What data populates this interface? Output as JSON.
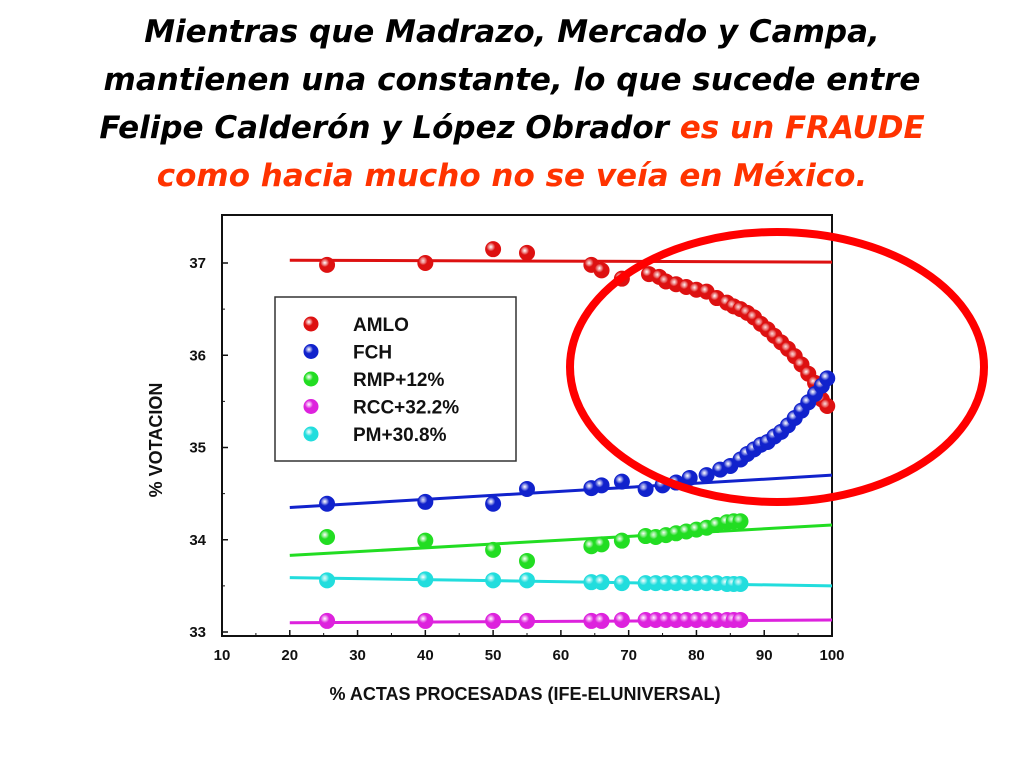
{
  "headline": {
    "line1": "Mientras que Madrazo, Mercado y Campa,",
    "line2": "mantienen una constante, lo que sucede entre",
    "line3_black": "Felipe Calderón y López Obrador",
    "line3_red": "es un FRAUDE",
    "line4_red": "como hacia mucho no se veía en México."
  },
  "colors": {
    "highlight_text": "#ff3300",
    "highlight_ellipse": "#ff0000"
  },
  "chart_data": {
    "type": "scatter",
    "xlabel": "% ACTAS PROCESADAS (IFE-ELUNIVERSAL)",
    "ylabel": "% VOTACION",
    "xlim": [
      10,
      100
    ],
    "ylim": [
      33,
      37.5
    ],
    "xticks": [
      "10",
      "20",
      "30",
      "40",
      "50",
      "60",
      "70",
      "80",
      "90",
      "100"
    ],
    "yticks": [
      "33",
      "34",
      "35",
      "36",
      "37"
    ],
    "legend_position": "upper-left",
    "series": [
      {
        "name": "AMLO",
        "color": "#dd1111",
        "trend": {
          "x": [
            20,
            100
          ],
          "y": [
            37.03,
            37.01
          ]
        },
        "points": [
          [
            25.5,
            36.98
          ],
          [
            40,
            37.0
          ],
          [
            50,
            37.15
          ],
          [
            55,
            37.11
          ],
          [
            64.5,
            36.98
          ],
          [
            66,
            36.92
          ],
          [
            69,
            36.83
          ],
          [
            73,
            36.88
          ],
          [
            74.5,
            36.85
          ],
          [
            75.5,
            36.8
          ],
          [
            77,
            36.77
          ],
          [
            78.5,
            36.74
          ],
          [
            80,
            36.71
          ],
          [
            81.5,
            36.69
          ],
          [
            83,
            36.62
          ],
          [
            84.5,
            36.57
          ],
          [
            85.5,
            36.53
          ],
          [
            86.5,
            36.5
          ],
          [
            87.5,
            36.46
          ],
          [
            88.5,
            36.41
          ],
          [
            89.5,
            36.34
          ],
          [
            90.5,
            36.28
          ],
          [
            91.5,
            36.21
          ],
          [
            92.5,
            36.14
          ],
          [
            93.5,
            36.07
          ],
          [
            94.5,
            35.99
          ],
          [
            95.5,
            35.9
          ],
          [
            96.5,
            35.8
          ],
          [
            97.5,
            35.7
          ],
          [
            98.5,
            35.52
          ],
          [
            99.3,
            35.45
          ]
        ]
      },
      {
        "name": "FCH",
        "color": "#1122cc",
        "trend": {
          "x": [
            20,
            100
          ],
          "y": [
            34.35,
            34.7
          ]
        },
        "points": [
          [
            25.5,
            34.39
          ],
          [
            40,
            34.41
          ],
          [
            50,
            34.39
          ],
          [
            55,
            34.55
          ],
          [
            64.5,
            34.56
          ],
          [
            66,
            34.59
          ],
          [
            69,
            34.63
          ],
          [
            72.5,
            34.55
          ],
          [
            75,
            34.59
          ],
          [
            77,
            34.62
          ],
          [
            79,
            34.67
          ],
          [
            81.5,
            34.7
          ],
          [
            83.5,
            34.76
          ],
          [
            85,
            34.8
          ],
          [
            86.5,
            34.87
          ],
          [
            87.5,
            34.93
          ],
          [
            88.5,
            34.98
          ],
          [
            89.5,
            35.03
          ],
          [
            90.5,
            35.06
          ],
          [
            91.5,
            35.12
          ],
          [
            92.5,
            35.17
          ],
          [
            93.5,
            35.24
          ],
          [
            94.5,
            35.32
          ],
          [
            95.5,
            35.4
          ],
          [
            96.5,
            35.49
          ],
          [
            97.5,
            35.58
          ],
          [
            98.5,
            35.67
          ],
          [
            99.3,
            35.75
          ]
        ]
      },
      {
        "name": "RMP+12%",
        "color": "#22dd22",
        "trend": {
          "x": [
            20,
            100
          ],
          "y": [
            33.83,
            34.16
          ]
        },
        "points": [
          [
            25.5,
            34.03
          ],
          [
            40,
            33.99
          ],
          [
            50,
            33.89
          ],
          [
            55,
            33.77
          ],
          [
            64.5,
            33.93
          ],
          [
            66,
            33.95
          ],
          [
            69,
            33.99
          ],
          [
            72.5,
            34.04
          ],
          [
            74,
            34.03
          ],
          [
            75.5,
            34.05
          ],
          [
            77,
            34.07
          ],
          [
            78.5,
            34.09
          ],
          [
            80,
            34.11
          ],
          [
            81.5,
            34.13
          ],
          [
            83,
            34.16
          ],
          [
            84.5,
            34.19
          ],
          [
            85.5,
            34.2
          ],
          [
            86.5,
            34.2
          ]
        ]
      },
      {
        "name": "RCC+32.2%",
        "color": "#dd22dd",
        "trend": {
          "x": [
            20,
            100
          ],
          "y": [
            33.1,
            33.13
          ]
        },
        "points": [
          [
            25.5,
            33.12
          ],
          [
            40,
            33.12
          ],
          [
            50,
            33.12
          ],
          [
            55,
            33.12
          ],
          [
            64.5,
            33.12
          ],
          [
            66,
            33.12
          ],
          [
            69,
            33.13
          ],
          [
            72.5,
            33.13
          ],
          [
            74,
            33.13
          ],
          [
            75.5,
            33.13
          ],
          [
            77,
            33.13
          ],
          [
            78.5,
            33.13
          ],
          [
            80,
            33.13
          ],
          [
            81.5,
            33.13
          ],
          [
            83,
            33.13
          ],
          [
            84.5,
            33.13
          ],
          [
            85.5,
            33.13
          ],
          [
            86.5,
            33.13
          ]
        ]
      },
      {
        "name": "PM+30.8%",
        "color": "#22dddd",
        "trend": {
          "x": [
            20,
            100
          ],
          "y": [
            33.59,
            33.5
          ]
        },
        "points": [
          [
            25.5,
            33.56
          ],
          [
            40,
            33.57
          ],
          [
            50,
            33.56
          ],
          [
            55,
            33.56
          ],
          [
            64.5,
            33.54
          ],
          [
            66,
            33.54
          ],
          [
            69,
            33.53
          ],
          [
            72.5,
            33.53
          ],
          [
            74,
            33.53
          ],
          [
            75.5,
            33.53
          ],
          [
            77,
            33.53
          ],
          [
            78.5,
            33.53
          ],
          [
            80,
            33.53
          ],
          [
            81.5,
            33.53
          ],
          [
            83,
            33.53
          ],
          [
            84.5,
            33.52
          ],
          [
            85.5,
            33.52
          ],
          [
            86.5,
            33.52
          ]
        ]
      }
    ]
  }
}
